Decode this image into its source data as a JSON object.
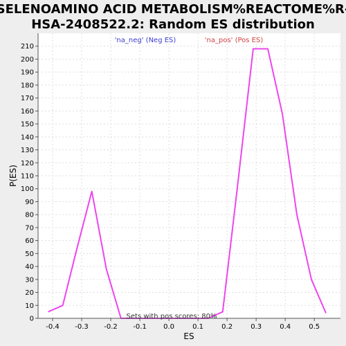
{
  "chart_data": {
    "type": "line",
    "title_lines": [
      "SELENOAMINO ACID METABOLISM%REACTOME%R-",
      "HSA-2408522.2: Random ES distribution"
    ],
    "xlabel": "ES",
    "ylabel": "P(ES)",
    "xlim": [
      -0.45,
      0.59
    ],
    "ylim": [
      0,
      220
    ],
    "x_ticks": [
      -0.4,
      -0.3,
      -0.2,
      -0.1,
      0.0,
      0.1,
      0.2,
      0.3,
      0.4,
      0.5
    ],
    "x_tick_labels": [
      "-0.4",
      "-0.3",
      "-0.2",
      "-0.1",
      "0.0",
      "0.1",
      "0.2",
      "0.3",
      "0.4",
      "0.5"
    ],
    "y_ticks": [
      0,
      10,
      20,
      30,
      40,
      50,
      60,
      70,
      80,
      90,
      100,
      110,
      120,
      130,
      140,
      150,
      160,
      170,
      180,
      190,
      200,
      210
    ],
    "y_tick_labels": [
      "0",
      "10",
      "20",
      "30",
      "40",
      "50",
      "60",
      "70",
      "80",
      "90",
      "100",
      "110",
      "120",
      "130",
      "140",
      "150",
      "160",
      "170",
      "180",
      "190",
      "200",
      "210"
    ],
    "grid": true,
    "legend": [
      {
        "label": "'na_neg' (Neg ES)",
        "color": "#3b3bd0"
      },
      {
        "label": "'na_pos' (Pos ES)",
        "color": "#d04040"
      }
    ],
    "legend_placement": "top",
    "series": [
      {
        "color": "#ee44ee",
        "x": [
          -0.415,
          -0.365,
          -0.315,
          -0.265,
          -0.215,
          -0.165,
          -0.115,
          -0.065,
          -0.015,
          0.035,
          0.085,
          0.135,
          0.185,
          0.235,
          0.29,
          0.34,
          0.39,
          0.44,
          0.49,
          0.54
        ],
        "y": [
          5,
          10,
          55,
          98,
          38,
          0,
          0,
          0,
          0,
          0,
          0,
          0,
          5,
          100,
          208,
          208,
          158,
          80,
          30,
          4
        ]
      }
    ],
    "annotation": "Sets with pos scores: 80%"
  },
  "colors": {
    "plot_background": "#ffffff",
    "page_background": "#eeeeee",
    "grid": "#dddddd",
    "line": "#ee44ee"
  }
}
